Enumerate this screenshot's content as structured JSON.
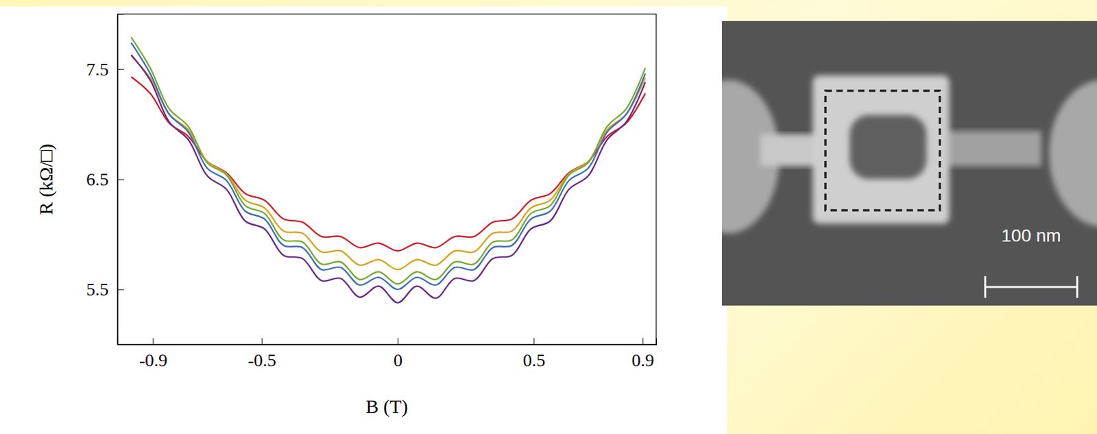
{
  "chart_data": {
    "type": "line",
    "x_label": "B (T)",
    "y_label": "R (kΩ/□)",
    "x": [
      -0.98,
      -0.91,
      -0.84,
      -0.77,
      -0.7,
      -0.63,
      -0.56,
      -0.49,
      -0.42,
      -0.35,
      -0.28,
      -0.21,
      -0.14,
      -0.07,
      0,
      0.07,
      0.14,
      0.21,
      0.28,
      0.35,
      0.42,
      0.49,
      0.56,
      0.63,
      0.7,
      0.77,
      0.84,
      0.91
    ],
    "series": [
      {
        "color": "#d0202a",
        "values": [
          7.43,
          7.28,
          7.01,
          6.89,
          6.66,
          6.56,
          6.37,
          6.31,
          6.14,
          6.11,
          5.98,
          5.98,
          5.88,
          5.92,
          5.85,
          5.92,
          5.88,
          5.98,
          5.98,
          6.11,
          6.14,
          6.31,
          6.37,
          6.56,
          6.66,
          6.89,
          7.01,
          7.28
        ]
      },
      {
        "color": "#d9a320",
        "values": [
          7.62,
          7.42,
          7.09,
          6.95,
          6.66,
          6.55,
          6.31,
          6.24,
          6.03,
          6.01,
          5.84,
          5.85,
          5.72,
          5.77,
          5.68,
          5.77,
          5.72,
          5.85,
          5.84,
          6.01,
          6.03,
          6.24,
          6.31,
          6.55,
          6.66,
          6.95,
          7.09,
          7.42
        ]
      },
      {
        "color": "#77ac30",
        "values": [
          7.79,
          7.51,
          7.14,
          6.98,
          6.65,
          6.54,
          6.26,
          6.19,
          5.95,
          5.93,
          5.73,
          5.75,
          5.59,
          5.66,
          5.55,
          5.66,
          5.59,
          5.75,
          5.73,
          5.93,
          5.95,
          6.19,
          6.26,
          6.54,
          6.65,
          6.98,
          7.14,
          7.51
        ]
      },
      {
        "color": "#3e6fc0",
        "values": [
          7.74,
          7.46,
          7.09,
          6.93,
          6.6,
          6.49,
          6.21,
          6.14,
          5.9,
          5.88,
          5.68,
          5.7,
          5.54,
          5.61,
          5.5,
          5.61,
          5.54,
          5.7,
          5.68,
          5.88,
          5.9,
          6.14,
          6.21,
          6.49,
          6.6,
          6.93,
          7.09,
          7.46
        ]
      },
      {
        "color": "#6a2a86",
        "values": [
          7.63,
          7.4,
          7.02,
          6.86,
          6.53,
          6.41,
          6.12,
          6.05,
          5.81,
          5.78,
          5.58,
          5.6,
          5.43,
          5.53,
          5.38,
          5.53,
          5.42,
          5.6,
          5.58,
          5.78,
          5.81,
          6.05,
          6.12,
          6.41,
          6.53,
          6.86,
          7.02,
          7.38
        ]
      }
    ],
    "xlim": [
      -1.03,
      0.95
    ],
    "ylim": [
      5.0,
      8.0
    ],
    "xticks": [
      -0.9,
      -0.5,
      0,
      0.5,
      0.9
    ],
    "yticks": [
      5.5,
      6.5,
      7.5
    ],
    "grid": false,
    "annotations": [
      "100 nm"
    ]
  }
}
